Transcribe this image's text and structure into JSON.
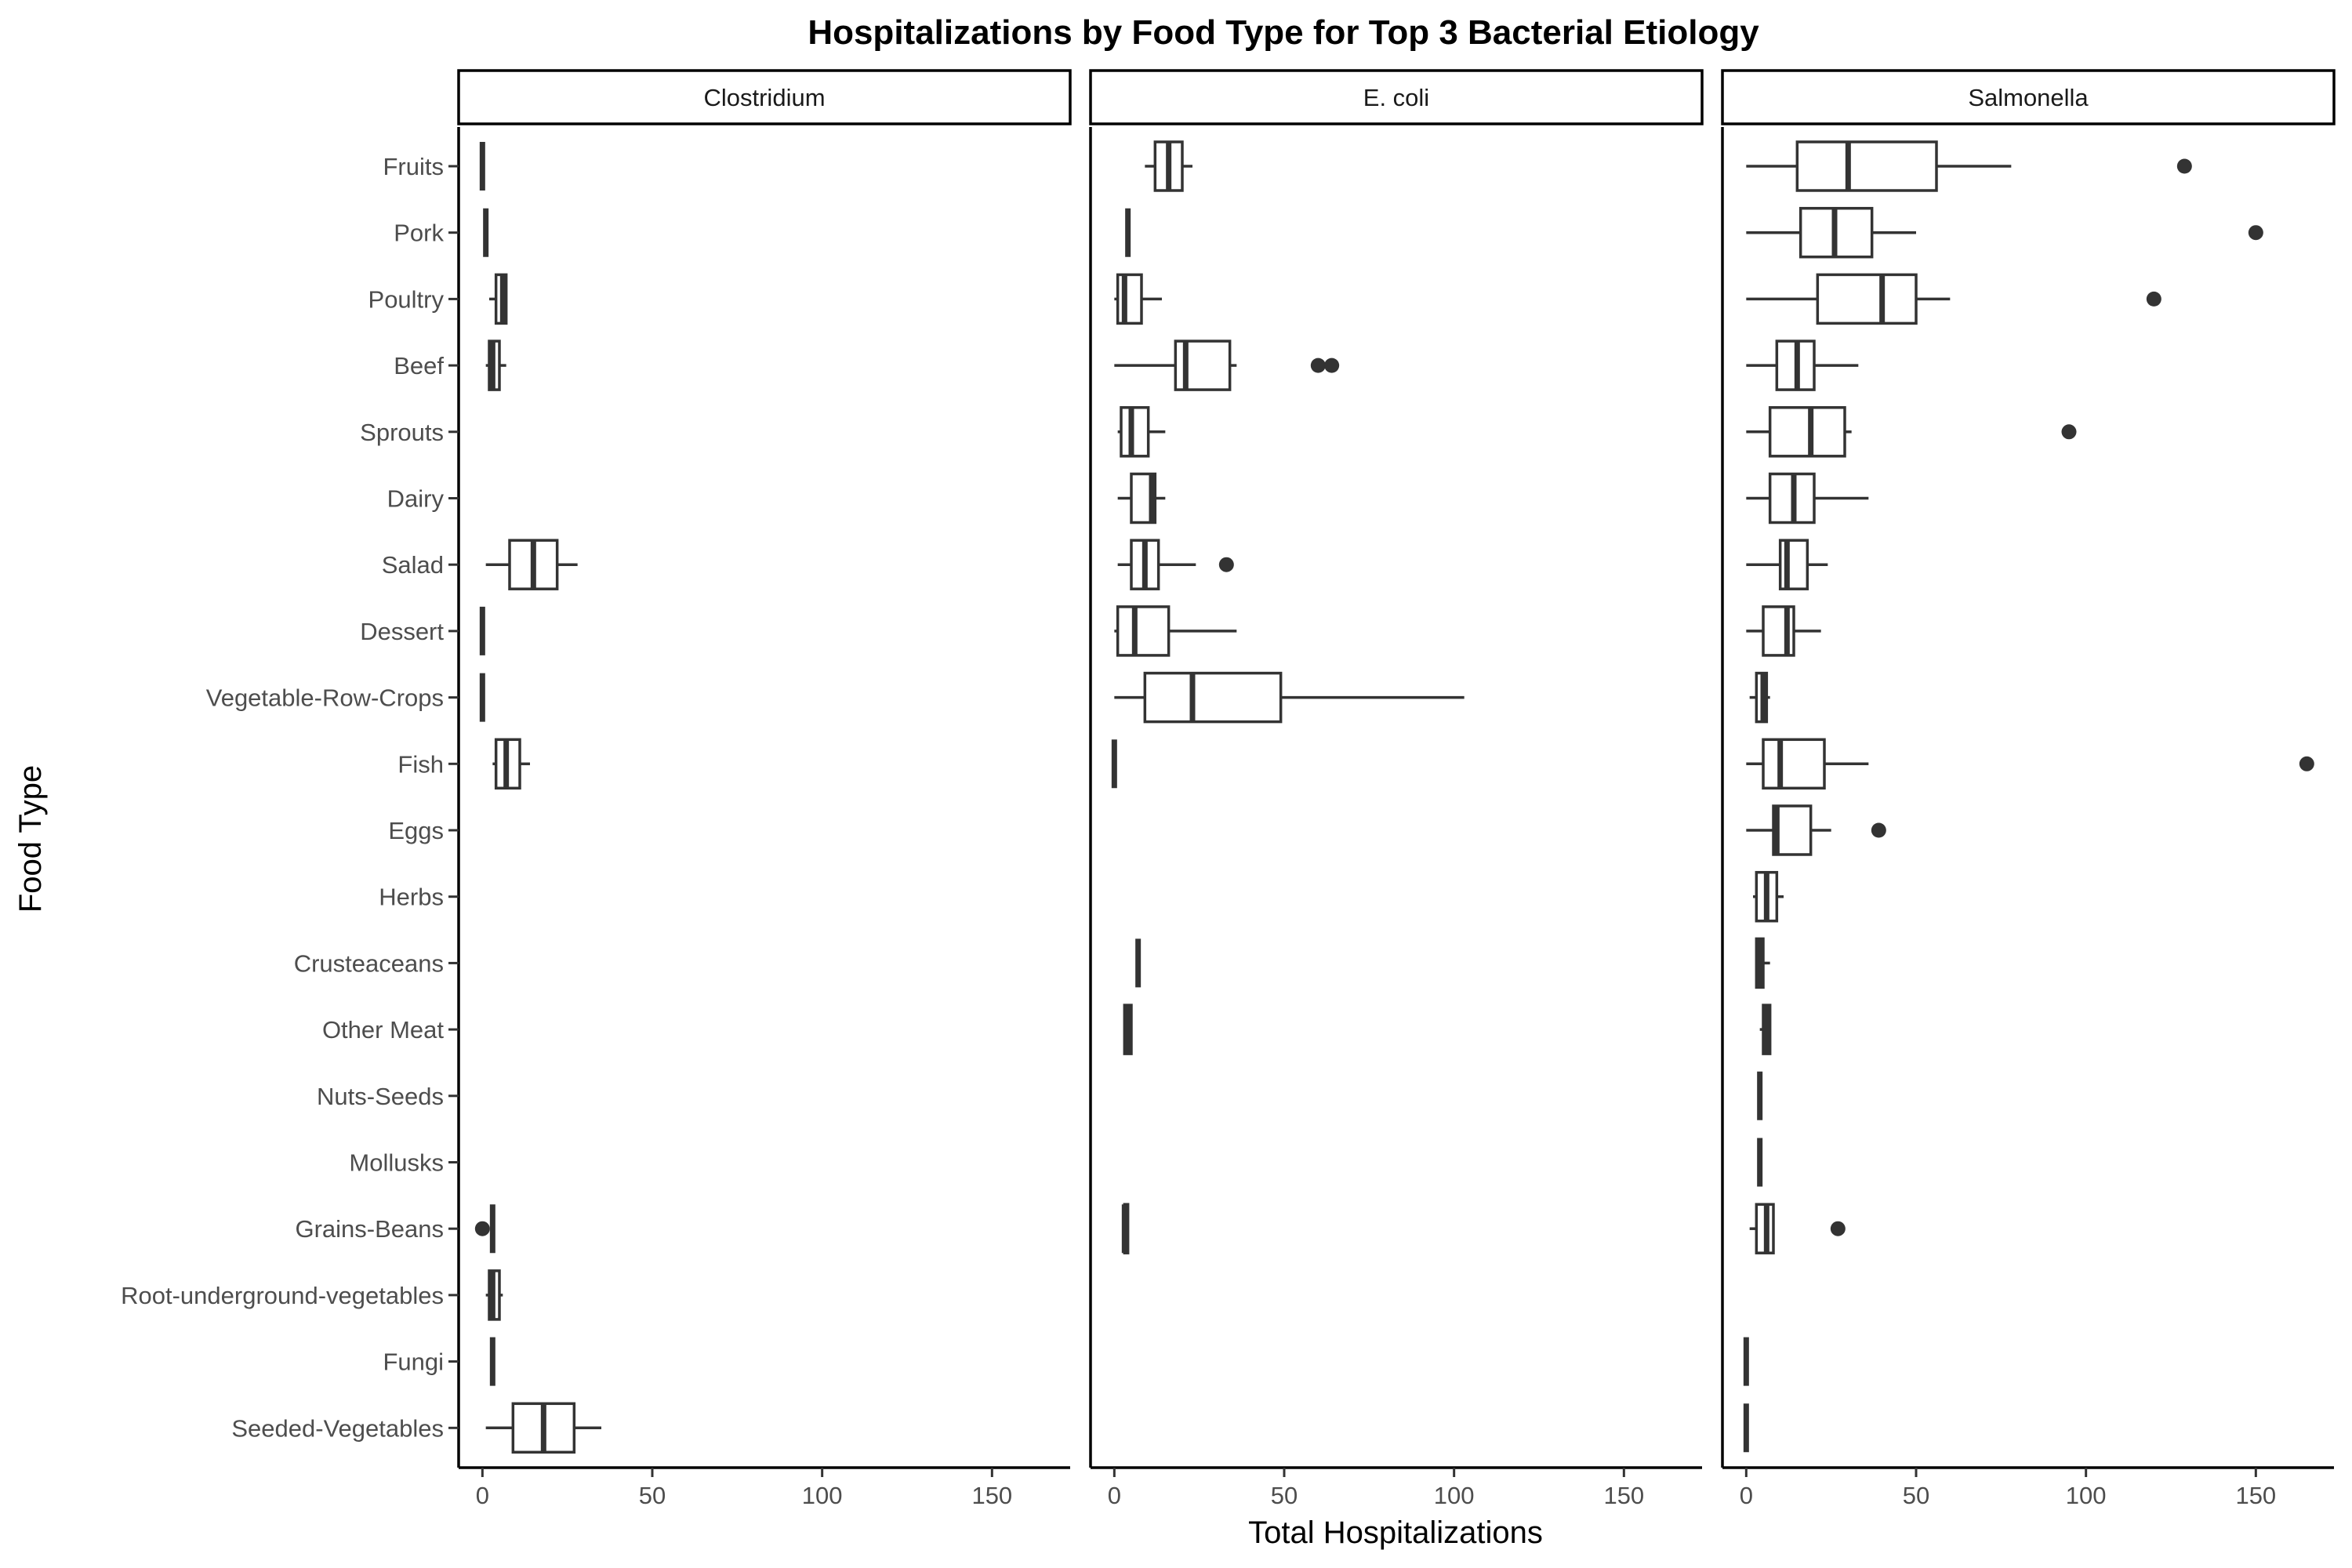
{
  "chart_data": {
    "type": "boxplot",
    "title": "Hospitalizations by Food Type for Top 3 Bacterial Etiology",
    "xlabel": "Total Hospitalizations",
    "ylabel": "Food Type",
    "xlim": [
      -7,
      173
    ],
    "x_ticks": [
      0,
      50,
      100,
      150
    ],
    "grid": false,
    "categories": [
      "Fruits",
      "Pork",
      "Poultry",
      "Beef",
      "Sprouts",
      "Dairy",
      "Salad",
      "Dessert",
      "Vegetable-Row-Crops",
      "Fish",
      "Eggs",
      "Herbs",
      "Crusteaceans",
      "Other Meat",
      "Nuts-Seeds",
      "Mollusks",
      "Grains-Beans",
      "Root-underground-vegetables",
      "Fungi",
      "Seeded-Vegetables"
    ],
    "facets": [
      {
        "name": "Clostridium",
        "boxes": [
          {
            "category": "Fruits",
            "min": 0,
            "q1": 0,
            "median": 0,
            "q3": 0,
            "max": 0,
            "outliers": []
          },
          {
            "category": "Pork",
            "min": 1,
            "q1": 1,
            "median": 1,
            "q3": 1,
            "max": 1,
            "outliers": []
          },
          {
            "category": "Poultry",
            "min": 2,
            "q1": 4,
            "median": 6,
            "q3": 7,
            "max": 7,
            "outliers": []
          },
          {
            "category": "Beef",
            "min": 1,
            "q1": 2,
            "median": 3,
            "q3": 5,
            "max": 7,
            "outliers": []
          },
          {
            "category": "Salad",
            "min": 1,
            "q1": 8,
            "median": 15,
            "q3": 22,
            "max": 28,
            "outliers": []
          },
          {
            "category": "Dessert",
            "min": 0,
            "q1": 0,
            "median": 0,
            "q3": 0,
            "max": 0,
            "outliers": []
          },
          {
            "category": "Vegetable-Row-Crops",
            "min": 0,
            "q1": 0,
            "median": 0,
            "q3": 0,
            "max": 0,
            "outliers": []
          },
          {
            "category": "Fish",
            "min": 3,
            "q1": 4,
            "median": 7,
            "q3": 11,
            "max": 14,
            "outliers": []
          },
          {
            "category": "Grains-Beans",
            "min": 3,
            "q1": 3,
            "median": 3,
            "q3": 3,
            "max": 3,
            "outliers": [
              0
            ]
          },
          {
            "category": "Root-underground-vegetables",
            "min": 1,
            "q1": 2,
            "median": 3,
            "q3": 5,
            "max": 6,
            "outliers": []
          },
          {
            "category": "Fungi",
            "min": 3,
            "q1": 3,
            "median": 3,
            "q3": 3,
            "max": 3,
            "outliers": []
          },
          {
            "category": "Seeded-Vegetables",
            "min": 1,
            "q1": 9,
            "median": 18,
            "q3": 27,
            "max": 35,
            "outliers": []
          }
        ]
      },
      {
        "name": "E. coli",
        "boxes": [
          {
            "category": "Fruits",
            "min": 9,
            "q1": 12,
            "median": 16,
            "q3": 20,
            "max": 23,
            "outliers": []
          },
          {
            "category": "Pork",
            "min": 4,
            "q1": 4,
            "median": 4,
            "q3": 4,
            "max": 4,
            "outliers": []
          },
          {
            "category": "Poultry",
            "min": 0,
            "q1": 1,
            "median": 3,
            "q3": 8,
            "max": 14,
            "outliers": []
          },
          {
            "category": "Beef",
            "min": 0,
            "q1": 18,
            "median": 21,
            "q3": 34,
            "max": 36,
            "outliers": [
              60,
              64
            ]
          },
          {
            "category": "Sprouts",
            "min": 1,
            "q1": 2,
            "median": 5,
            "q3": 10,
            "max": 15,
            "outliers": []
          },
          {
            "category": "Dairy",
            "min": 1,
            "q1": 5,
            "median": 11,
            "q3": 12,
            "max": 15,
            "outliers": []
          },
          {
            "category": "Salad",
            "min": 1,
            "q1": 5,
            "median": 9,
            "q3": 13,
            "max": 24,
            "outliers": [
              33
            ]
          },
          {
            "category": "Dessert",
            "min": 0,
            "q1": 1,
            "median": 6,
            "q3": 16,
            "max": 36,
            "outliers": []
          },
          {
            "category": "Vegetable-Row-Crops",
            "min": 0,
            "q1": 9,
            "median": 23,
            "q3": 49,
            "max": 103,
            "outliers": []
          },
          {
            "category": "Fish",
            "min": 0,
            "q1": 0,
            "median": 0,
            "q3": 0,
            "max": 0,
            "outliers": []
          },
          {
            "category": "Crusteaceans",
            "min": 7,
            "q1": 7,
            "median": 7,
            "q3": 7,
            "max": 7,
            "outliers": []
          },
          {
            "category": "Other Meat",
            "min": 3,
            "q1": 3,
            "median": 4,
            "q3": 5,
            "max": 5,
            "outliers": []
          },
          {
            "category": "Grains-Beans",
            "min": 3,
            "q1": 3,
            "median": 3,
            "q3": 4,
            "max": 4,
            "outliers": []
          }
        ]
      },
      {
        "name": "Salmonella",
        "boxes": [
          {
            "category": "Fruits",
            "min": 0,
            "q1": 15,
            "median": 30,
            "q3": 56,
            "max": 78,
            "outliers": [
              129
            ]
          },
          {
            "category": "Pork",
            "min": 0,
            "q1": 16,
            "median": 26,
            "q3": 37,
            "max": 50,
            "outliers": [
              150
            ]
          },
          {
            "category": "Poultry",
            "min": 0,
            "q1": 21,
            "median": 40,
            "q3": 50,
            "max": 60,
            "outliers": [
              120
            ]
          },
          {
            "category": "Beef",
            "min": 0,
            "q1": 9,
            "median": 15,
            "q3": 20,
            "max": 33,
            "outliers": []
          },
          {
            "category": "Sprouts",
            "min": 0,
            "q1": 7,
            "median": 19,
            "q3": 29,
            "max": 31,
            "outliers": [
              95
            ]
          },
          {
            "category": "Dairy",
            "min": 0,
            "q1": 7,
            "median": 14,
            "q3": 20,
            "max": 36,
            "outliers": []
          },
          {
            "category": "Salad",
            "min": 0,
            "q1": 10,
            "median": 12,
            "q3": 18,
            "max": 24,
            "outliers": []
          },
          {
            "category": "Dessert",
            "min": 0,
            "q1": 5,
            "median": 12,
            "q3": 14,
            "max": 22,
            "outliers": []
          },
          {
            "category": "Vegetable-Row-Crops",
            "min": 1,
            "q1": 3,
            "median": 5,
            "q3": 6,
            "max": 7,
            "outliers": []
          },
          {
            "category": "Fish",
            "min": 0,
            "q1": 5,
            "median": 10,
            "q3": 23,
            "max": 36,
            "outliers": [
              165
            ]
          },
          {
            "category": "Eggs",
            "min": 0,
            "q1": 8,
            "median": 9,
            "q3": 19,
            "max": 25,
            "outliers": [
              39
            ]
          },
          {
            "category": "Herbs",
            "min": 2,
            "q1": 3,
            "median": 6,
            "q3": 9,
            "max": 11,
            "outliers": []
          },
          {
            "category": "Crusteaceans",
            "min": 3,
            "q1": 3,
            "median": 4,
            "q3": 5,
            "max": 7,
            "outliers": []
          },
          {
            "category": "Other Meat",
            "min": 4,
            "q1": 5,
            "median": 6,
            "q3": 7,
            "max": 7,
            "outliers": []
          },
          {
            "category": "Nuts-Seeds",
            "min": 4,
            "q1": 4,
            "median": 4,
            "q3": 4,
            "max": 4,
            "outliers": []
          },
          {
            "category": "Mollusks",
            "min": 4,
            "q1": 4,
            "median": 4,
            "q3": 4,
            "max": 4,
            "outliers": []
          },
          {
            "category": "Grains-Beans",
            "min": 1,
            "q1": 3,
            "median": 6,
            "q3": 8,
            "max": 8,
            "outliers": [
              27
            ]
          },
          {
            "category": "Fungi",
            "min": 0,
            "q1": 0,
            "median": 0,
            "q3": 0,
            "max": 0,
            "outliers": []
          },
          {
            "category": "Seeded-Vegetables",
            "min": 0,
            "q1": 0,
            "median": 0,
            "q3": 0,
            "max": 0,
            "outliers": []
          }
        ]
      }
    ]
  }
}
